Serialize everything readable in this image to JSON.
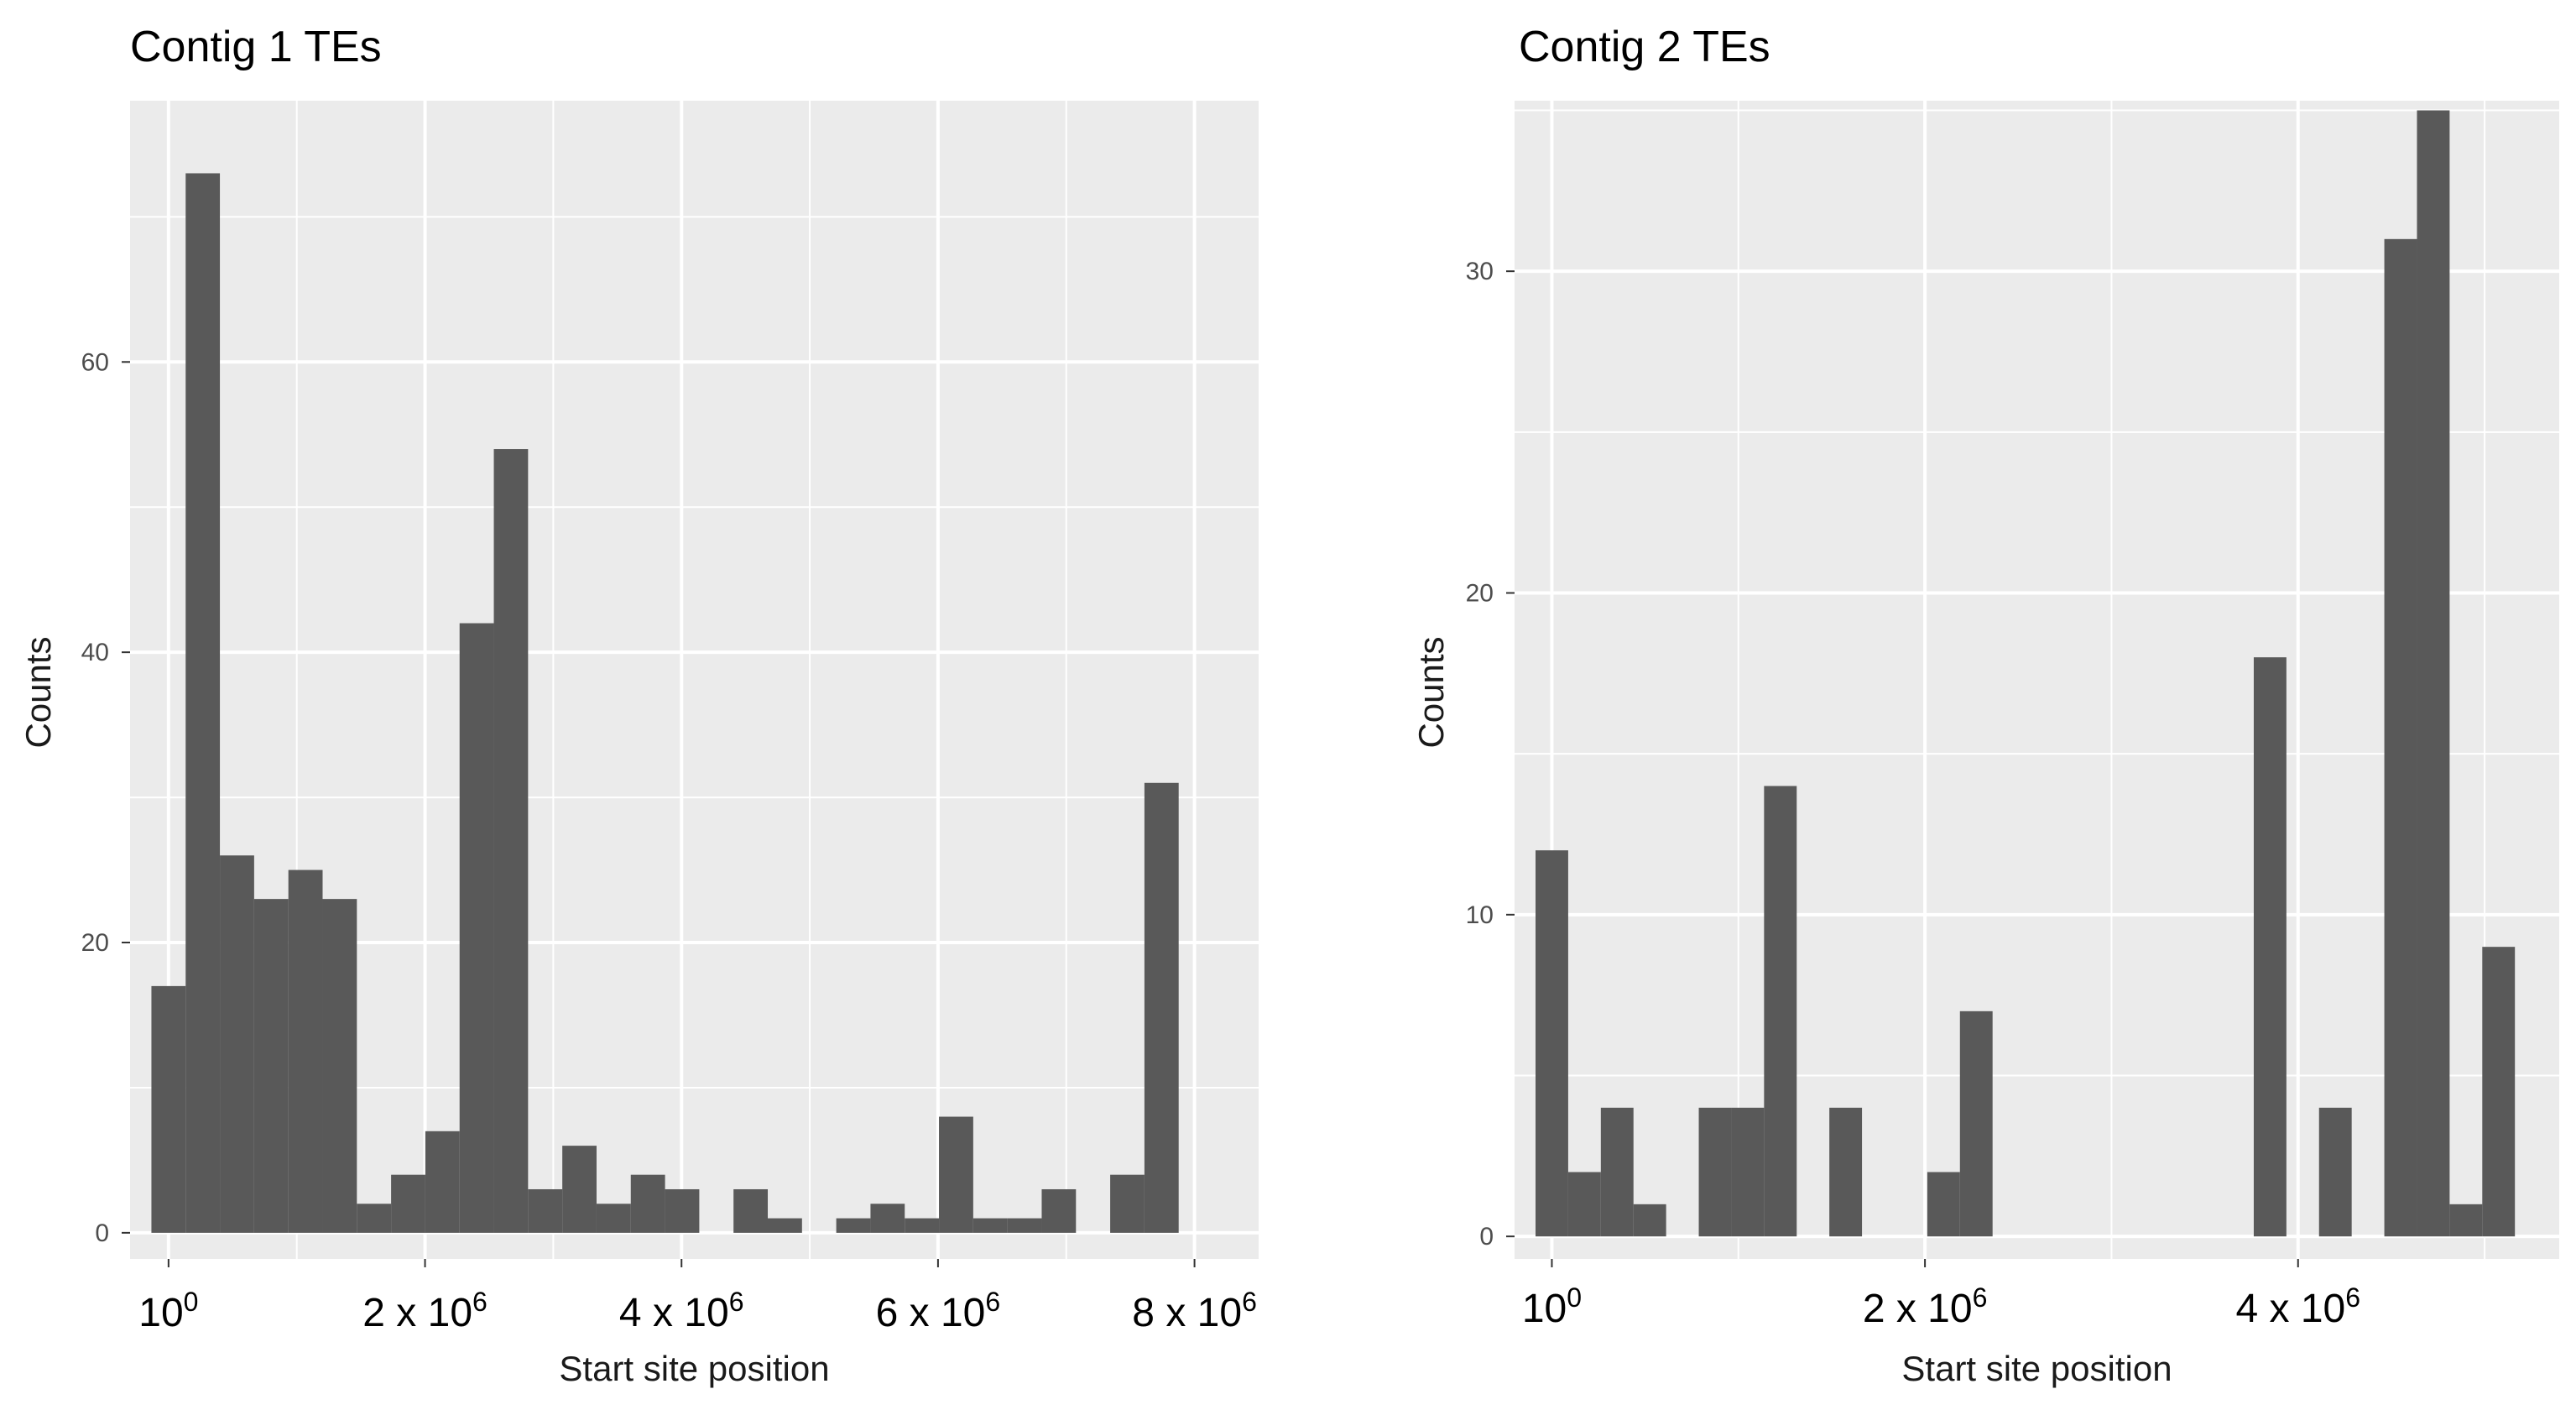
{
  "charts": [
    {
      "title": "Contig 1 TEs"
    },
    {
      "title": "Contig 2 TEs"
    }
  ],
  "chart_data": [
    {
      "type": "bar",
      "title": "Contig 1 TEs",
      "xlabel": "Start site position",
      "ylabel": "Counts",
      "xlim": [
        -300000,
        8500000
      ],
      "ylim": [
        -1.8,
        78
      ],
      "binwidth": 267000,
      "first_bin_start": -133500,
      "values": [
        17,
        73,
        26,
        23,
        25,
        23,
        2,
        4,
        7,
        42,
        54,
        3,
        6,
        2,
        4,
        3,
        0,
        3,
        1,
        0,
        1,
        2,
        1,
        8,
        1,
        1,
        3,
        0,
        4,
        31
      ],
      "yticks": [
        0,
        20,
        40,
        60
      ],
      "xticks": [
        {
          "value": 0,
          "base": "10",
          "exp": "0"
        },
        {
          "value": 2000000,
          "base": "2 x 10",
          "exp": "6"
        },
        {
          "value": 4000000,
          "base": "4 x 10",
          "exp": "6"
        },
        {
          "value": 6000000,
          "base": "6 x 10",
          "exp": "6"
        },
        {
          "value": 8000000,
          "base": "8 x 10",
          "exp": "6"
        }
      ],
      "grid": true
    },
    {
      "type": "bar",
      "title": "Contig 2 TEs",
      "xlabel": "Start site position",
      "ylabel": "Counts",
      "xlim": [
        -200000,
        5400000
      ],
      "ylim": [
        -0.7,
        35.3
      ],
      "binwidth": 175000,
      "first_bin_start": -87500,
      "values": [
        12,
        2,
        4,
        1,
        0,
        4,
        4,
        14,
        0,
        4,
        0,
        0,
        2,
        7,
        0,
        0,
        0,
        0,
        0,
        0,
        0,
        0,
        18,
        0,
        4,
        0,
        31,
        35,
        1,
        9
      ],
      "yticks": [
        0,
        10,
        20,
        30
      ],
      "xticks": [
        {
          "value": 0,
          "base": "10",
          "exp": "0"
        },
        {
          "value": 2000000,
          "base": "2 x 10",
          "exp": "6"
        },
        {
          "value": 4000000,
          "base": "4 x 10",
          "exp": "6"
        }
      ],
      "grid": true
    }
  ]
}
